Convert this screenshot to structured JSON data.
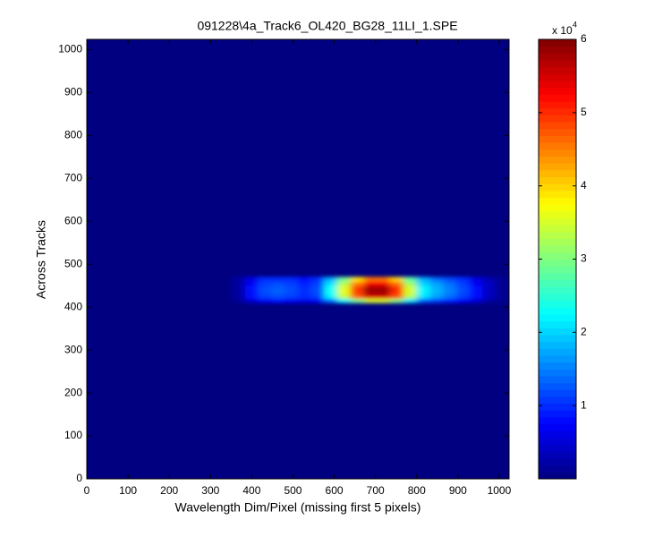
{
  "chart_data": {
    "type": "heatmap",
    "title": "091228\\4a_Track6_OL420_BG28_11LI_1.SPE",
    "x_label": "Wavelength Dim/Pixel (missing first 5 pixels)",
    "y_label": "Across Tracks",
    "xlim": [
      0,
      1024
    ],
    "ylim": [
      0,
      1024
    ],
    "xticks": [
      0,
      100,
      200,
      300,
      400,
      500,
      600,
      700,
      800,
      900,
      1000
    ],
    "yticks": [
      0,
      100,
      200,
      300,
      400,
      500,
      600,
      700,
      800,
      900,
      1000
    ],
    "x_bins": [
      352,
      384,
      416,
      448,
      480,
      512,
      544,
      576,
      608,
      640,
      672,
      704,
      736,
      768,
      800,
      832,
      864,
      896,
      928,
      960,
      992,
      1024
    ],
    "y_bins": [
      410,
      420,
      430,
      440,
      450,
      460,
      470
    ],
    "values": [
      [
        0.1,
        0.5,
        0.7,
        0.8,
        0.7,
        0.6,
        0.7,
        1.4,
        2.2,
        2.9,
        3.5,
        3.5,
        3.0,
        2.1,
        1.3,
        1.1,
        0.9,
        0.7,
        0.5,
        0.2,
        0.1
      ],
      [
        0.2,
        0.8,
        1.1,
        1.2,
        1.1,
        1.0,
        1.1,
        2.2,
        3.4,
        4.7,
        5.5,
        5.5,
        4.8,
        3.3,
        2.1,
        1.7,
        1.4,
        1.1,
        0.8,
        0.4,
        0.1
      ],
      [
        0.2,
        0.8,
        1.2,
        1.3,
        1.2,
        1.0,
        1.2,
        2.3,
        3.6,
        4.9,
        5.8,
        5.8,
        5.0,
        3.5,
        2.2,
        1.8,
        1.5,
        1.2,
        0.8,
        0.4,
        0.1
      ],
      [
        0.2,
        0.8,
        1.2,
        1.3,
        1.2,
        1.0,
        1.2,
        2.3,
        3.6,
        4.9,
        5.8,
        5.8,
        5.0,
        3.5,
        2.2,
        1.8,
        1.5,
        1.2,
        0.8,
        0.4,
        0.1
      ],
      [
        0.2,
        0.7,
        1.1,
        1.2,
        1.1,
        0.9,
        1.1,
        2.1,
        3.3,
        4.5,
        5.3,
        5.3,
        4.6,
        3.2,
        2.0,
        1.7,
        1.4,
        1.1,
        0.7,
        0.4,
        0.1
      ],
      [
        0.2,
        0.6,
        1.0,
        1.0,
        1.0,
        0.8,
        1.0,
        1.8,
        2.9,
        3.9,
        4.6,
        4.6,
        4.0,
        2.8,
        1.8,
        1.4,
        1.2,
        1.0,
        0.6,
        0.3,
        0.1
      ]
    ],
    "colormap": "jet",
    "clim": [
      0,
      6
    ],
    "colorbar_ticks": [
      1,
      2,
      3,
      4,
      5,
      6
    ],
    "colorbar_multiplier": "x 10",
    "colorbar_exponent": "4"
  }
}
